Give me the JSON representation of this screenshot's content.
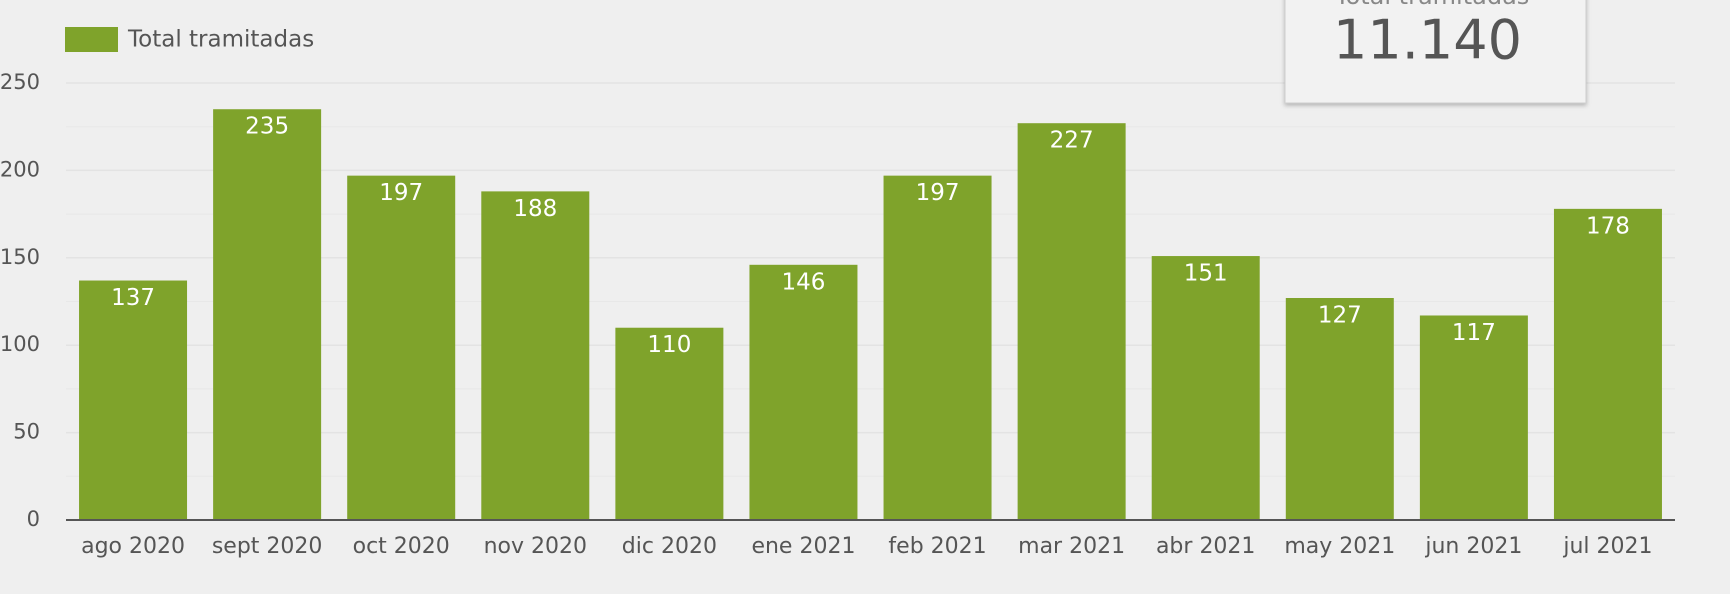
{
  "chart_data": {
    "type": "bar",
    "categories": [
      "ago 2020",
      "sept 2020",
      "oct 2020",
      "nov 2020",
      "dic 2020",
      "ene 2021",
      "feb 2021",
      "mar 2021",
      "abr 2021",
      "may 2021",
      "jun 2021",
      "jul 2021"
    ],
    "series": [
      {
        "name": "Total tramitadas",
        "color": "#7fa32b",
        "values": [
          137,
          235,
          197,
          188,
          110,
          146,
          197,
          227,
          151,
          127,
          117,
          178
        ]
      }
    ],
    "ylim": [
      0,
      250
    ],
    "yticks": [
      0,
      50,
      100,
      150,
      200,
      250
    ],
    "minor_yticks": [
      25,
      75,
      125,
      175,
      225
    ],
    "grid": true,
    "legend": "top-left"
  },
  "kpi": {
    "label": "Total tramitadas",
    "value": "11.140"
  }
}
